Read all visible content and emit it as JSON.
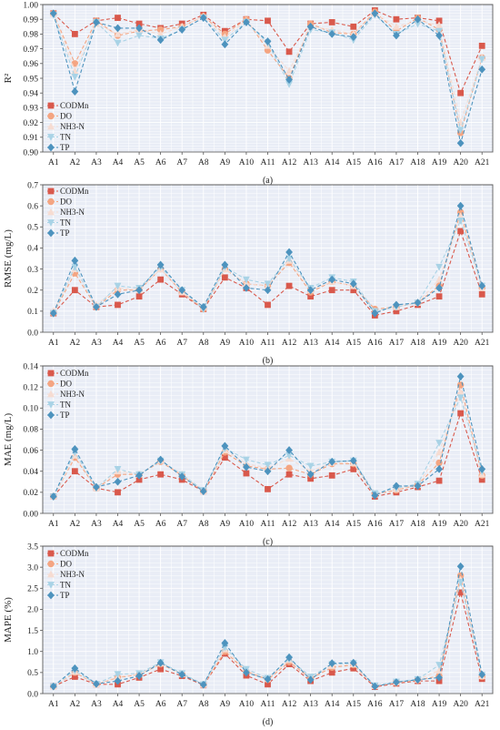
{
  "chart_data": [
    {
      "type": "line",
      "caption": "(a)",
      "ylabel": "R²",
      "ylim": [
        0.9,
        1.0
      ],
      "yticks": [
        "0.90",
        "0.91",
        "0.92",
        "0.93",
        "0.94",
        "0.95",
        "0.96",
        "0.97",
        "0.98",
        "0.99",
        "1.00"
      ],
      "grid": true,
      "legend_position": "bottom-left",
      "categories": [
        "A1",
        "A2",
        "A3",
        "A4",
        "A5",
        "A6",
        "A7",
        "A8",
        "A9",
        "A10",
        "A11",
        "A12",
        "A13",
        "A14",
        "A15",
        "A16",
        "A17",
        "A18",
        "A19",
        "A20",
        "A21"
      ],
      "series": [
        {
          "name": "CODMn",
          "values": [
            0.994,
            0.98,
            0.989,
            0.991,
            0.987,
            0.984,
            0.987,
            0.993,
            0.982,
            0.99,
            0.989,
            0.968,
            0.987,
            0.988,
            0.985,
            0.996,
            0.99,
            0.991,
            0.989,
            0.94,
            0.972
          ]
        },
        {
          "name": "DO",
          "values": [
            0.994,
            0.96,
            0.989,
            0.979,
            0.982,
            0.983,
            0.985,
            0.992,
            0.98,
            0.99,
            0.969,
            0.95,
            0.987,
            0.981,
            0.98,
            0.995,
            0.982,
            0.991,
            0.983,
            0.913,
            0.964
          ]
        },
        {
          "name": "NH3-N",
          "values": [
            0.994,
            0.955,
            0.987,
            0.98,
            0.983,
            0.98,
            0.985,
            0.992,
            0.978,
            0.989,
            0.972,
            0.955,
            0.985,
            0.983,
            0.98,
            0.994,
            0.985,
            0.989,
            0.986,
            0.92,
            0.964
          ]
        },
        {
          "name": "TN",
          "values": [
            0.993,
            0.951,
            0.988,
            0.974,
            0.979,
            0.977,
            0.983,
            0.991,
            0.976,
            0.988,
            0.974,
            0.946,
            0.983,
            0.981,
            0.976,
            0.993,
            0.98,
            0.987,
            0.982,
            0.915,
            0.963
          ]
        },
        {
          "name": "TP",
          "values": [
            0.994,
            0.941,
            0.988,
            0.984,
            0.984,
            0.976,
            0.983,
            0.991,
            0.973,
            0.988,
            0.975,
            0.949,
            0.985,
            0.98,
            0.978,
            0.994,
            0.979,
            0.99,
            0.979,
            0.906,
            0.956
          ]
        }
      ]
    },
    {
      "type": "line",
      "caption": "(b)",
      "ylabel": "RMSE (mg/L)",
      "ylim": [
        0.0,
        0.7
      ],
      "yticks": [
        "0.0",
        "0.1",
        "0.2",
        "0.3",
        "0.4",
        "0.5",
        "0.6",
        "0.7"
      ],
      "grid": true,
      "legend_position": "top-left",
      "categories": [
        "A1",
        "A2",
        "A3",
        "A4",
        "A5",
        "A6",
        "A7",
        "A8",
        "A9",
        "A10",
        "A11",
        "A12",
        "A13",
        "A14",
        "A15",
        "A16",
        "A17",
        "A18",
        "A19",
        "A20",
        "A21"
      ],
      "series": [
        {
          "name": "CODMn",
          "values": [
            0.09,
            0.2,
            0.12,
            0.13,
            0.17,
            0.25,
            0.18,
            0.11,
            0.26,
            0.21,
            0.13,
            0.22,
            0.17,
            0.2,
            0.2,
            0.08,
            0.1,
            0.13,
            0.17,
            0.48,
            0.18
          ]
        },
        {
          "name": "DO",
          "values": [
            0.09,
            0.28,
            0.12,
            0.2,
            0.2,
            0.3,
            0.19,
            0.11,
            0.3,
            0.23,
            0.22,
            0.33,
            0.19,
            0.24,
            0.22,
            0.11,
            0.12,
            0.14,
            0.22,
            0.57,
            0.21
          ]
        },
        {
          "name": "NH3-N",
          "values": [
            0.1,
            0.3,
            0.13,
            0.21,
            0.2,
            0.3,
            0.19,
            0.12,
            0.3,
            0.23,
            0.22,
            0.34,
            0.2,
            0.24,
            0.22,
            0.1,
            0.12,
            0.14,
            0.25,
            0.55,
            0.21
          ]
        },
        {
          "name": "TN",
          "values": [
            0.09,
            0.31,
            0.12,
            0.22,
            0.21,
            0.31,
            0.2,
            0.11,
            0.31,
            0.25,
            0.23,
            0.35,
            0.21,
            0.26,
            0.24,
            0.1,
            0.12,
            0.14,
            0.31,
            0.53,
            0.22
          ]
        },
        {
          "name": "TP",
          "values": [
            0.09,
            0.34,
            0.12,
            0.18,
            0.2,
            0.32,
            0.2,
            0.12,
            0.32,
            0.21,
            0.2,
            0.38,
            0.2,
            0.25,
            0.23,
            0.09,
            0.13,
            0.14,
            0.21,
            0.6,
            0.22
          ]
        }
      ]
    },
    {
      "type": "line",
      "caption": "(c)",
      "ylabel": "MAE (mg/L)",
      "ylim": [
        0.0,
        0.14
      ],
      "yticks": [
        "0.00",
        "0.02",
        "0.04",
        "0.06",
        "0.08",
        "0.10",
        "0.12",
        "0.14"
      ],
      "grid": true,
      "legend_position": "top-left",
      "categories": [
        "A1",
        "A2",
        "A3",
        "A4",
        "A5",
        "A6",
        "A7",
        "A8",
        "A9",
        "A10",
        "A11",
        "A12",
        "A13",
        "A14",
        "A15",
        "A16",
        "A17",
        "A18",
        "A19",
        "A20",
        "A21"
      ],
      "series": [
        {
          "name": "CODMn",
          "values": [
            0.016,
            0.04,
            0.024,
            0.02,
            0.032,
            0.037,
            0.032,
            0.021,
            0.053,
            0.038,
            0.023,
            0.037,
            0.033,
            0.036,
            0.042,
            0.016,
            0.02,
            0.025,
            0.031,
            0.095,
            0.032
          ]
        },
        {
          "name": "DO",
          "values": [
            0.016,
            0.053,
            0.024,
            0.037,
            0.037,
            0.049,
            0.036,
            0.021,
            0.058,
            0.045,
            0.042,
            0.043,
            0.037,
            0.047,
            0.047,
            0.018,
            0.022,
            0.027,
            0.048,
            0.122,
            0.036
          ]
        },
        {
          "name": "NH3-N",
          "values": [
            0.016,
            0.055,
            0.024,
            0.04,
            0.037,
            0.05,
            0.037,
            0.021,
            0.06,
            0.047,
            0.043,
            0.052,
            0.04,
            0.048,
            0.048,
            0.018,
            0.023,
            0.027,
            0.058,
            0.115,
            0.037
          ]
        },
        {
          "name": "TN",
          "values": [
            0.016,
            0.058,
            0.024,
            0.042,
            0.037,
            0.05,
            0.037,
            0.022,
            0.062,
            0.051,
            0.046,
            0.055,
            0.045,
            0.049,
            0.05,
            0.019,
            0.024,
            0.028,
            0.067,
            0.11,
            0.04
          ]
        },
        {
          "name": "TP",
          "values": [
            0.016,
            0.061,
            0.025,
            0.03,
            0.036,
            0.051,
            0.035,
            0.021,
            0.064,
            0.044,
            0.04,
            0.06,
            0.037,
            0.049,
            0.05,
            0.017,
            0.026,
            0.026,
            0.042,
            0.13,
            0.042
          ]
        }
      ]
    },
    {
      "type": "line",
      "caption": "(d)",
      "ylabel": "MAPE (%)",
      "ylim": [
        0.0,
        3.5
      ],
      "yticks": [
        "0.0",
        "0.5",
        "1.0",
        "1.5",
        "2.0",
        "2.5",
        "3.0",
        "3.5"
      ],
      "grid": true,
      "legend_position": "top-left",
      "categories": [
        "A1",
        "A2",
        "A3",
        "A4",
        "A5",
        "A6",
        "A7",
        "A8",
        "A9",
        "A10",
        "A11",
        "A12",
        "A13",
        "A14",
        "A15",
        "A16",
        "A17",
        "A18",
        "A19",
        "A20",
        "A21"
      ],
      "series": [
        {
          "name": "CODMn",
          "values": [
            0.17,
            0.4,
            0.22,
            0.22,
            0.38,
            0.58,
            0.42,
            0.2,
            0.95,
            0.43,
            0.22,
            0.7,
            0.3,
            0.5,
            0.6,
            0.16,
            0.24,
            0.3,
            0.3,
            2.4,
            0.35
          ]
        },
        {
          "name": "DO",
          "values": [
            0.17,
            0.5,
            0.22,
            0.38,
            0.45,
            0.7,
            0.46,
            0.21,
            1.0,
            0.52,
            0.33,
            0.75,
            0.36,
            0.62,
            0.68,
            0.18,
            0.26,
            0.32,
            0.42,
            2.8,
            0.4
          ]
        },
        {
          "name": "NH3-N",
          "values": [
            0.17,
            0.52,
            0.22,
            0.4,
            0.46,
            0.72,
            0.46,
            0.21,
            1.05,
            0.55,
            0.35,
            0.8,
            0.38,
            0.66,
            0.7,
            0.18,
            0.27,
            0.33,
            0.55,
            2.7,
            0.42
          ]
        },
        {
          "name": "TN",
          "values": [
            0.17,
            0.55,
            0.23,
            0.46,
            0.48,
            0.74,
            0.48,
            0.22,
            1.1,
            0.58,
            0.37,
            0.82,
            0.4,
            0.7,
            0.72,
            0.19,
            0.28,
            0.34,
            0.68,
            2.65,
            0.44
          ]
        },
        {
          "name": "TP",
          "values": [
            0.17,
            0.6,
            0.23,
            0.3,
            0.42,
            0.73,
            0.45,
            0.21,
            1.2,
            0.5,
            0.34,
            0.86,
            0.33,
            0.72,
            0.73,
            0.17,
            0.27,
            0.33,
            0.38,
            3.02,
            0.45
          ]
        }
      ]
    }
  ],
  "series_styles": [
    {
      "name": "CODMn",
      "color": "#d9594c",
      "marker": "square"
    },
    {
      "name": "DO",
      "color": "#f4a582",
      "marker": "circle"
    },
    {
      "name": "NH3-N",
      "color": "#f6dcd2",
      "marker": "triangle-up"
    },
    {
      "name": "TN",
      "color": "#a9d3e6",
      "marker": "triangle-down"
    },
    {
      "name": "TP",
      "color": "#4d93be",
      "marker": "diamond"
    }
  ],
  "plot_background": "#e9edf6"
}
